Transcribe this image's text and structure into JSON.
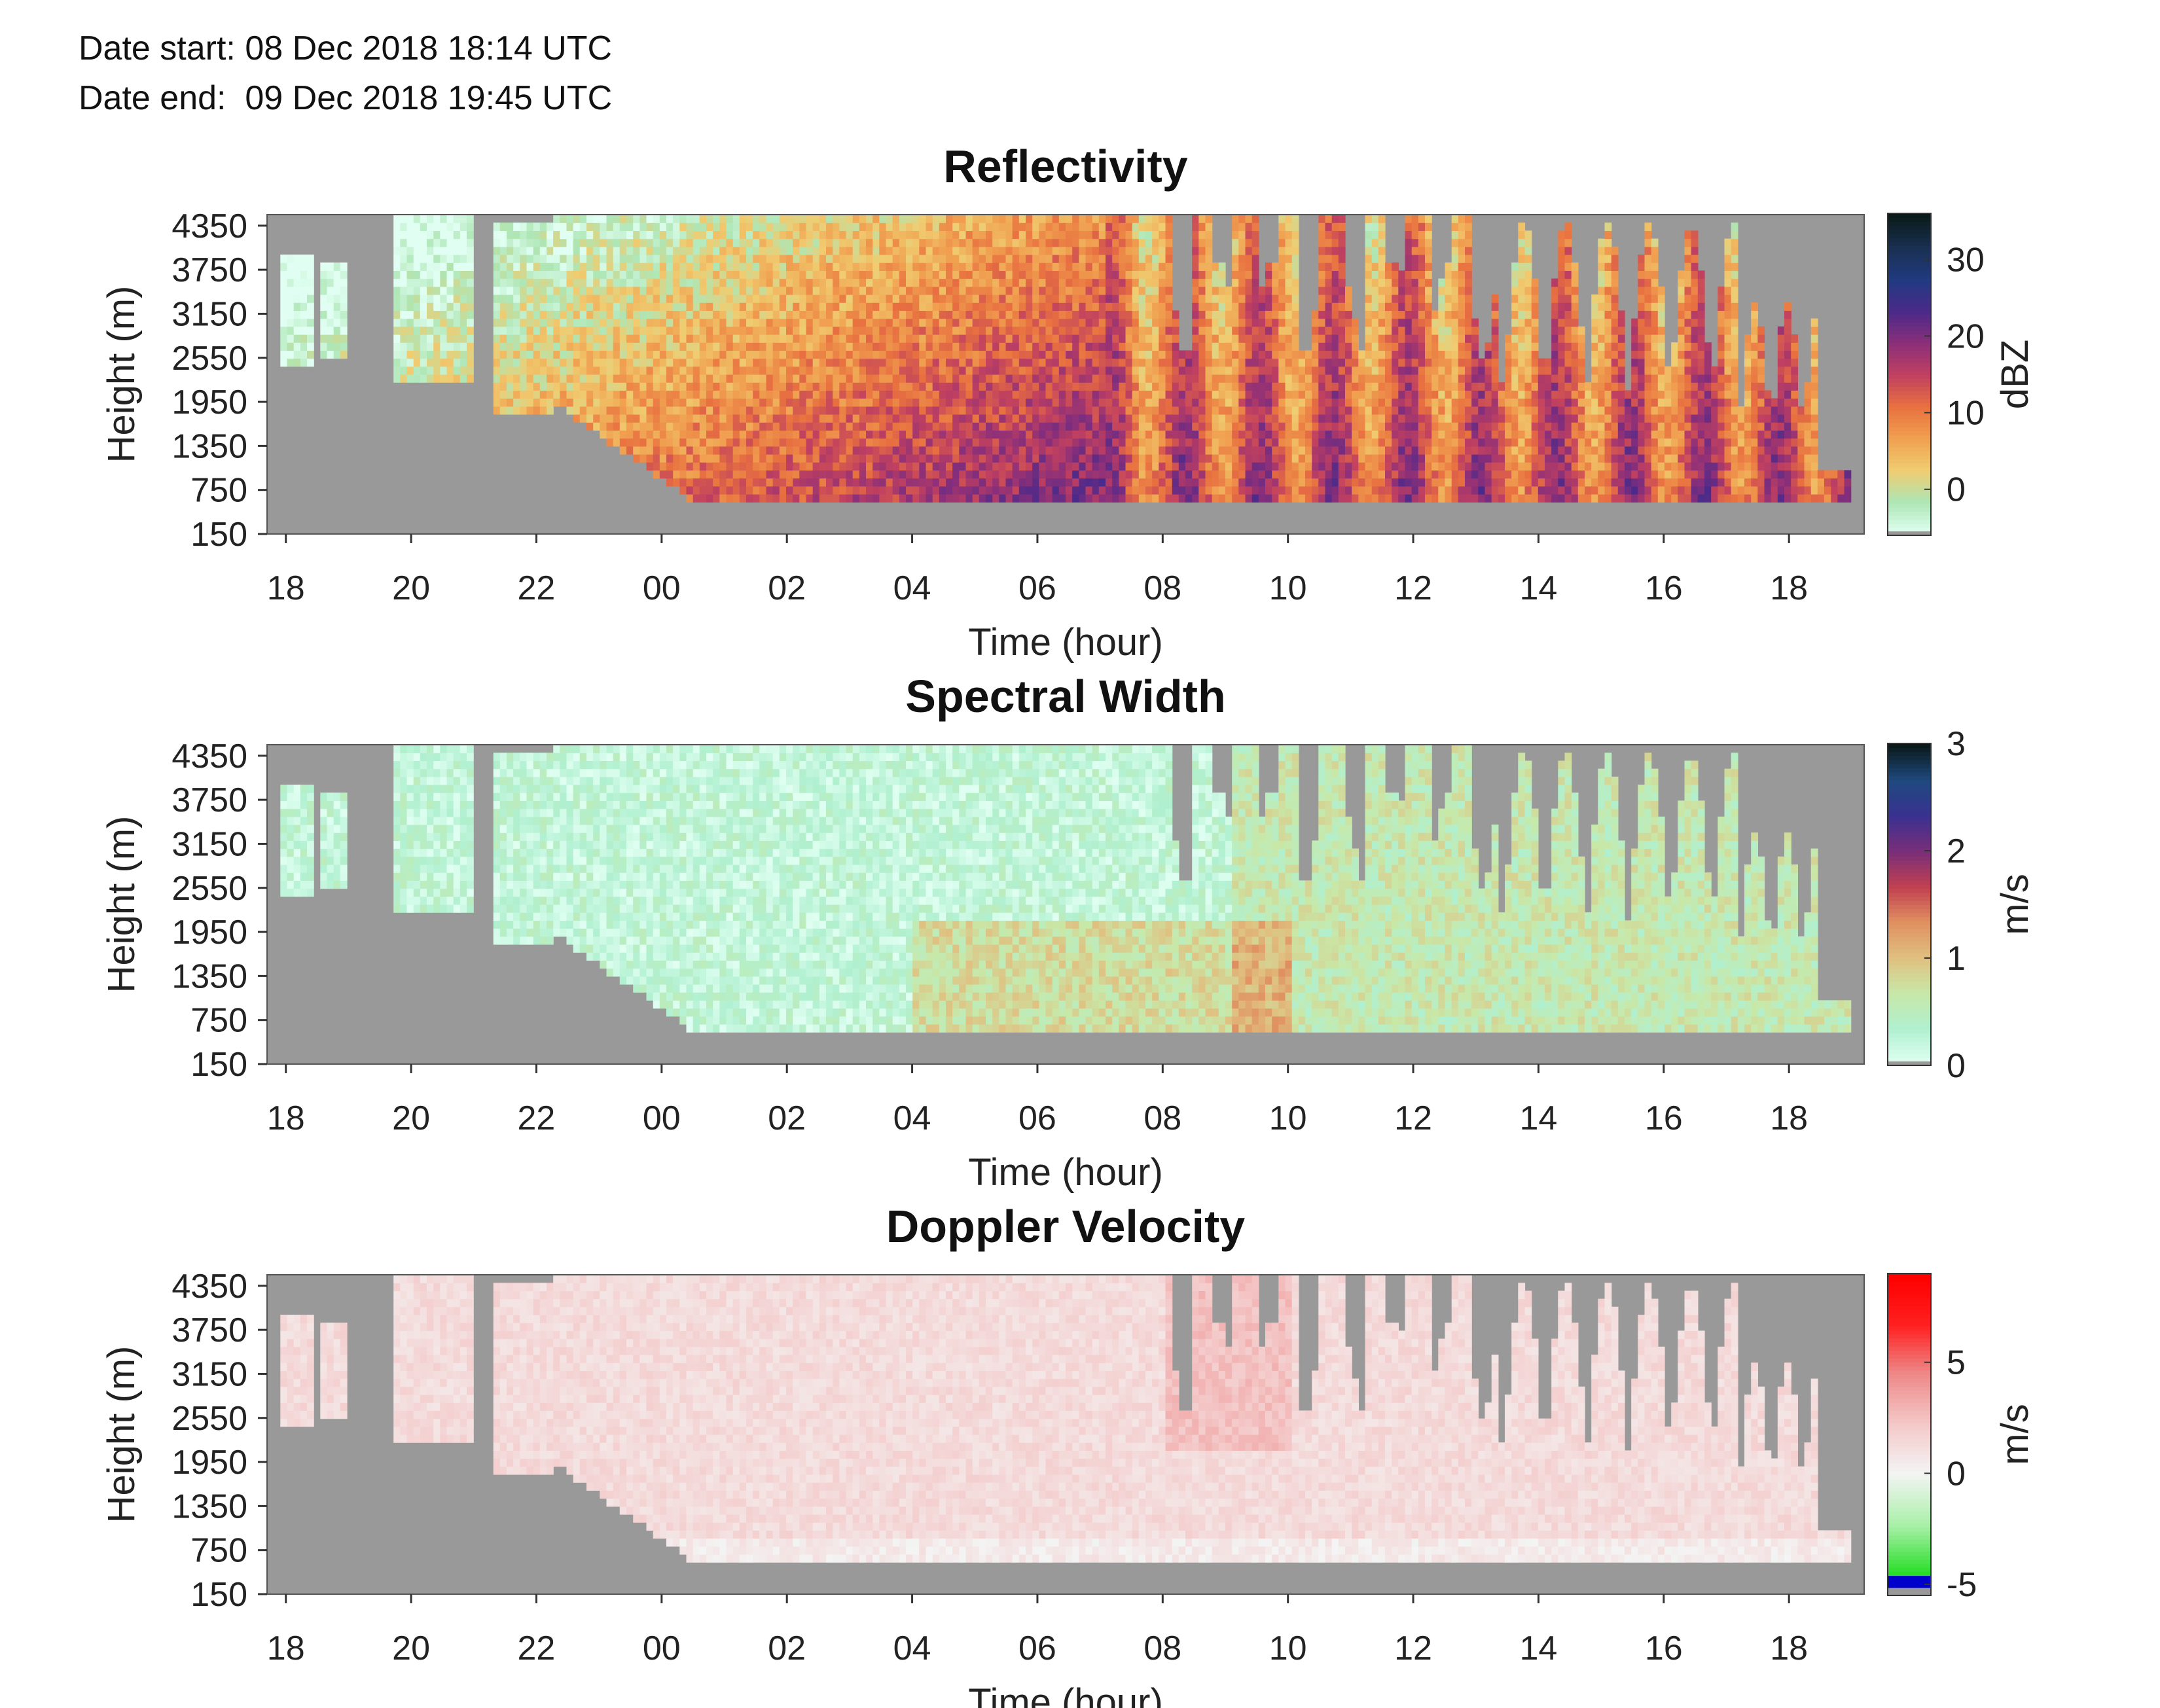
{
  "header": {
    "date_start": "Date start: 08 Dec 2018 18:14 UTC",
    "date_end": "Date end:  09 Dec 2018 19:45 UTC"
  },
  "colors": {
    "no_data": "#999999",
    "reflectivity_colormap": [
      "#e0fff2",
      "#aee6b5",
      "#f0cc70",
      "#f0a050",
      "#e87040",
      "#c04060",
      "#8a2f7a",
      "#4a2a8a",
      "#203a80",
      "#1a3050",
      "#0a1a1a"
    ],
    "spectral_width_colormap": [
      "#e0fff2",
      "#b0f0d0",
      "#c8e8a8",
      "#e0c080",
      "#e09060",
      "#c04050",
      "#7a2f78",
      "#3a3090",
      "#1f4a80",
      "#0a1a1a"
    ],
    "doppler_colormap_below_zero": [
      "#0000cc",
      "#22dd22",
      "#aaf0aa",
      "#f4f4f4"
    ],
    "doppler_colormap_above_zero": [
      "#f4f4f4",
      "#f4c8c8",
      "#ee8a8a",
      "#ff2020",
      "#ff0000"
    ]
  },
  "chart_data": [
    {
      "type": "heatmap",
      "title": "Reflectivity",
      "xlabel": "Time (hour)",
      "ylabel": "Height (m)",
      "colorbar_label": "dBZ",
      "colorbar_ticks": [
        0,
        10,
        20,
        30
      ],
      "clim": [
        -6,
        36
      ],
      "xticks": [
        "18",
        "20",
        "22",
        "00",
        "02",
        "04",
        "06",
        "08",
        "10",
        "12",
        "14",
        "16",
        "18"
      ],
      "yticks": [
        150,
        750,
        1350,
        1950,
        2550,
        3150,
        3750,
        4350
      ],
      "xlim_hours": [
        17.7,
        43.2
      ],
      "ylim": [
        150,
        4500
      ]
    },
    {
      "type": "heatmap",
      "title": "Spectral Width",
      "xlabel": "Time (hour)",
      "ylabel": "Height (m)",
      "colorbar_label": "m/s",
      "colorbar_ticks": [
        0,
        1,
        2,
        3
      ],
      "clim": [
        0,
        3
      ],
      "xticks": [
        "18",
        "20",
        "22",
        "00",
        "02",
        "04",
        "06",
        "08",
        "10",
        "12",
        "14",
        "16",
        "18"
      ],
      "yticks": [
        150,
        750,
        1350,
        1950,
        2550,
        3150,
        3750,
        4350
      ],
      "xlim_hours": [
        17.7,
        43.2
      ],
      "ylim": [
        150,
        4500
      ]
    },
    {
      "type": "heatmap",
      "title": "Doppler Velocity",
      "xlabel": "Time (hour)",
      "ylabel": "Height (m)",
      "colorbar_label": "m/s",
      "colorbar_ticks": [
        -5,
        0,
        5
      ],
      "clim": [
        -5.5,
        9
      ],
      "xticks": [
        "18",
        "20",
        "22",
        "00",
        "02",
        "04",
        "06",
        "08",
        "10",
        "12",
        "14",
        "16",
        "18"
      ],
      "yticks": [
        150,
        750,
        1350,
        1950,
        2550,
        3150,
        3750,
        4350
      ],
      "xlim_hours": [
        17.7,
        43.2
      ],
      "ylim": [
        150,
        4500
      ]
    }
  ]
}
